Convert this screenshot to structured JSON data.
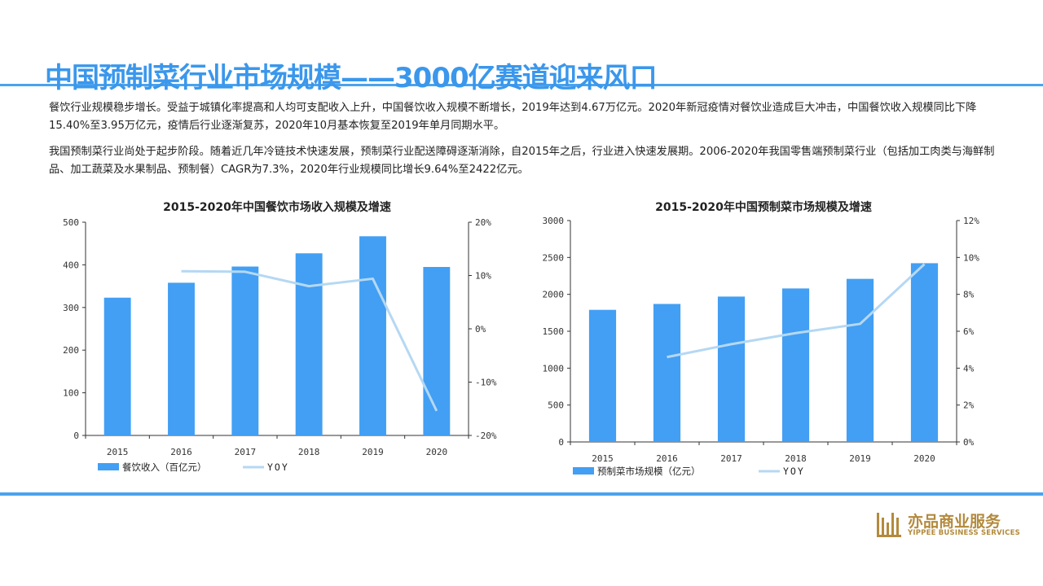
{
  "header": {
    "title": "中国预制菜行业市场规模——3000亿赛道迎来风口"
  },
  "paragraphs": [
    "餐饮行业规模稳步增长。受益于城镇化率提高和人均可支配收入上升，中国餐饮收入规模不断增长，2019年达到4.67万亿元。2020年新冠疫情对餐饮业造成巨大冲击，中国餐饮收入规模同比下降15.40%至3.95万亿元，疫情后行业逐渐复苏，2020年10月基本恢复至2019年单月同期水平。",
    "我国预制菜行业尚处于起步阶段。随着近几年冷链技术快速发展，预制菜行业配送障碍逐渐消除，自2015年之后，行业进入快速发展期。2006-2020年我国零售端预制菜行业（包括加工肉类与海鲜制品、加工蔬菜及水果制品、预制餐）CAGR为7.3%，2020年行业规模同比增长9.64%至2422亿元。"
  ],
  "logo": {
    "cn": "亦品商业服务",
    "en": "YIPPEE BUSINESS SERVICES",
    "color": "#b38a3c"
  },
  "colors": {
    "accent": "#4aa3ee",
    "bar": "#429ff3",
    "line": "#b5d8f3"
  },
  "chart_data": [
    {
      "type": "bar",
      "title": "2015-2020年中国餐饮市场收入规模及增速",
      "categories": [
        "2015",
        "2016",
        "2017",
        "2018",
        "2019",
        "2020"
      ],
      "series": [
        {
          "name": "餐饮收入（百亿元）",
          "type": "bar",
          "axis": "left",
          "values": [
            323,
            358,
            396,
            427,
            467,
            395
          ]
        },
        {
          "name": "YOY",
          "type": "line",
          "axis": "right",
          "values": [
            null,
            10.8,
            10.7,
            8.0,
            9.4,
            -15.4
          ]
        }
      ],
      "ylim": [
        0,
        500
      ],
      "yticks": [
        "0",
        "100",
        "200",
        "300",
        "400",
        "500"
      ],
      "y2lim": [
        -20,
        20
      ],
      "y2ticks": [
        "-20%",
        "-10%",
        "0%",
        "10%",
        "20%"
      ],
      "legend": "bottom-left",
      "grid": false
    },
    {
      "type": "bar",
      "title": "2015-2020年中国预制菜市场规模及增速",
      "categories": [
        "2015",
        "2016",
        "2017",
        "2018",
        "2019",
        "2020"
      ],
      "series": [
        {
          "name": "预制菜市场规模（亿元）",
          "type": "bar",
          "axis": "left",
          "values": [
            1790,
            1870,
            1970,
            2080,
            2210,
            2422
          ]
        },
        {
          "name": "YOY",
          "type": "line",
          "axis": "right",
          "values": [
            null,
            4.6,
            5.3,
            5.9,
            6.4,
            9.64
          ]
        }
      ],
      "ylim": [
        0,
        3000
      ],
      "yticks": [
        "0",
        "500",
        "1000",
        "1500",
        "2000",
        "2500",
        "3000"
      ],
      "y2lim": [
        0,
        12
      ],
      "y2ticks": [
        "0%",
        "2%",
        "4%",
        "6%",
        "8%",
        "10%",
        "12%"
      ],
      "legend": "bottom-left",
      "grid": false
    }
  ]
}
